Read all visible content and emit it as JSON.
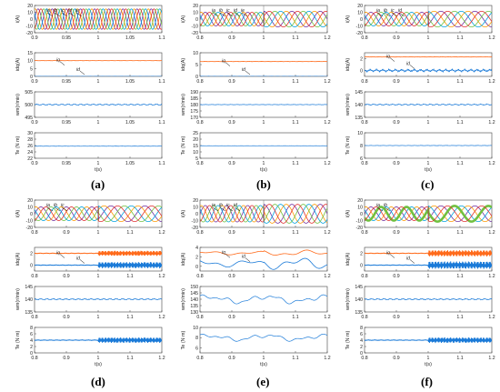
{
  "colors": {
    "phase_a": "#7030a0",
    "phase_b": "#ff9900",
    "phase_c": "#00a0e0",
    "phase_d": "#70c040",
    "phase_e": "#e03030",
    "id_line": "#ff6a1a",
    "iq_line": "#1a7ad8",
    "speed_line": "#1a7ad8",
    "torque_line": "#1a7ad8",
    "axis": "#444444"
  },
  "chart_data": [
    {
      "panel": "(a)",
      "type": "line",
      "xlabel": "t(s)",
      "xlim": [
        0.9,
        1.1
      ],
      "xticks": [
        "0.9",
        "0.95",
        "1",
        "1.05",
        "1.1"
      ],
      "subplots": [
        {
          "ylabel": "i(A)",
          "ylim": [
            -20,
            20
          ],
          "yticks": [
            "20",
            "10",
            "0",
            "-10",
            "-20"
          ],
          "kind": "phase_currents",
          "amp": 15,
          "cycles": 9,
          "phases": 5,
          "change_at": null,
          "annotations": [
            "ia",
            "ib",
            "ic",
            "id",
            "ie"
          ]
        },
        {
          "ylabel": "idq(A)",
          "ylim": [
            0,
            15
          ],
          "yticks": [
            "15",
            "10",
            "5",
            "0"
          ],
          "kind": "dq",
          "series": [
            {
              "name": "iq",
              "mean": 10,
              "ripple": 0.08
            },
            {
              "name": "id",
              "mean": 0,
              "ripple": 0.08
            }
          ]
        },
        {
          "ylabel": "wm(r/min)",
          "ylim": [
            495,
            505
          ],
          "yticks": [
            "505",
            "500",
            "495"
          ],
          "kind": "flat",
          "mean": 500,
          "ripple": 0.3
        },
        {
          "ylabel": "Te (N m)",
          "ylim": [
            22,
            30
          ],
          "yticks": [
            "30",
            "28",
            "26",
            "24",
            "22"
          ],
          "kind": "flat",
          "mean": 25.8,
          "ripple": 0.05
        }
      ]
    },
    {
      "panel": "(b)",
      "type": "line",
      "xlabel": "t(s)",
      "xlim": [
        0.8,
        1.2
      ],
      "xticks": [
        "0.8",
        "0.9",
        "1",
        "1.1",
        "1.2"
      ],
      "subplots": [
        {
          "ylabel": "i(A)",
          "ylim": [
            -20,
            20
          ],
          "yticks": [
            "20",
            "10",
            "0",
            "-10",
            "-20"
          ],
          "kind": "phase_currents",
          "amp": 10,
          "cycles": 6,
          "phases": 5,
          "change_at": 1.0,
          "annotations": [
            "ia",
            "ib",
            "ic",
            "id",
            "ie"
          ]
        },
        {
          "ylabel": "idq(A)",
          "ylim": [
            0,
            10
          ],
          "yticks": [
            "10",
            "5",
            "0"
          ],
          "kind": "dq",
          "series": [
            {
              "name": "iq",
              "mean": 6.3,
              "ripple": 0.08
            },
            {
              "name": "id",
              "mean": 0,
              "ripple": 0.08
            }
          ]
        },
        {
          "ylabel": "wm(r/min)",
          "ylim": [
            170,
            190
          ],
          "yticks": [
            "190",
            "185",
            "180",
            "175",
            "170"
          ],
          "kind": "flat",
          "mean": 180,
          "ripple": 0.2
        },
        {
          "ylabel": "Te (N m)",
          "ylim": [
            5,
            25
          ],
          "yticks": [
            "25",
            "20",
            "15",
            "10",
            "5"
          ],
          "kind": "flat",
          "mean": 14.8,
          "ripple": 0.05
        }
      ]
    },
    {
      "panel": "(c)",
      "type": "line",
      "xlabel": "t(s)",
      "xlim": [
        0.8,
        1.2
      ],
      "xticks": [
        "0.8",
        "0.9",
        "1",
        "1.1",
        "1.2"
      ],
      "subplots": [
        {
          "ylabel": "i(A)",
          "ylim": [
            -20,
            20
          ],
          "yticks": [
            "20",
            "10",
            "0",
            "-10",
            "-20"
          ],
          "kind": "phase_currents",
          "amp": 10,
          "cycles": 5,
          "phases": 5,
          "change_at": 1.0,
          "annotations": [
            "ia",
            "ib",
            "ic",
            "id"
          ]
        },
        {
          "ylabel": "idq(A)",
          "ylim": [
            -1,
            3
          ],
          "yticks": [
            "2",
            "0"
          ],
          "kind": "dq",
          "series": [
            {
              "name": "iq",
              "mean": 2.3,
              "ripple": 0.04
            },
            {
              "name": "id",
              "mean": 0.0,
              "ripple": 0.25
            }
          ]
        },
        {
          "ylabel": "wm(r/min)",
          "ylim": [
            135,
            145
          ],
          "yticks": [
            "145",
            "140",
            "135"
          ],
          "kind": "flat",
          "mean": 140,
          "ripple": 0.3
        },
        {
          "ylabel": "Te (N m)",
          "ylim": [
            6,
            10
          ],
          "yticks": [
            "10",
            "8",
            "6"
          ],
          "kind": "flat",
          "mean": 8,
          "ripple": 0.03
        }
      ]
    },
    {
      "panel": "(d)",
      "type": "line",
      "xlabel": "t(s)",
      "xlim": [
        0.8,
        1.2
      ],
      "xticks": [
        "0.8",
        "0.9",
        "1",
        "1.1",
        "1.2"
      ],
      "subplots": [
        {
          "ylabel": "i(A)",
          "ylim": [
            -20,
            20
          ],
          "yticks": [
            "20",
            "10",
            "0",
            "-10",
            "-20"
          ],
          "kind": "phase_currents",
          "amp": 10,
          "cycles": 5,
          "phases": 5,
          "change_at": 1.0,
          "annotations": [
            "ia",
            "ib",
            "ic"
          ]
        },
        {
          "ylabel": "idq(A)",
          "ylim": [
            -1,
            3
          ],
          "yticks": [
            "2",
            "0"
          ],
          "kind": "dq_band",
          "series": [
            {
              "name": "iq",
              "mean": 2.0,
              "ripple": 0.05,
              "band": 0.4
            },
            {
              "name": "id",
              "mean": 0.0,
              "ripple": 0.05,
              "band": 0.5
            }
          ]
        },
        {
          "ylabel": "wm(r/min)",
          "ylim": [
            135,
            145
          ],
          "yticks": [
            "145",
            "140",
            "135"
          ],
          "kind": "flat",
          "mean": 140,
          "ripple": 0.3
        },
        {
          "ylabel": "Te (N m)",
          "ylim": [
            0,
            8
          ],
          "yticks": [
            "8",
            "6",
            "4",
            "2",
            "0"
          ],
          "kind": "band_after",
          "mean": 4,
          "ripple": 0.1,
          "band": 0.8
        }
      ]
    },
    {
      "panel": "(e)",
      "type": "line",
      "xlabel": "t(s)",
      "xlim": [
        0.8,
        1.2
      ],
      "xticks": [
        "0.8",
        "0.9",
        "1",
        "1.1",
        "1.2"
      ],
      "subplots": [
        {
          "ylabel": "i(A)",
          "ylim": [
            -20,
            20
          ],
          "yticks": [
            "20",
            "10",
            "0",
            "-10",
            "-20"
          ],
          "kind": "phase_currents",
          "amp": 12,
          "cycles": 6,
          "phases": 5,
          "change_at": 1.0,
          "annotations": [
            "ia",
            "ib",
            "ic",
            "id"
          ]
        },
        {
          "ylabel": "idq(A)",
          "ylim": [
            -1,
            4
          ],
          "yticks": [
            "4",
            "2",
            "0"
          ],
          "kind": "dq_wobble",
          "series": [
            {
              "name": "iq",
              "mean": 2.8,
              "ripple": 0.4
            },
            {
              "name": "id",
              "mean": 0.6,
              "ripple": 0.8
            }
          ]
        },
        {
          "ylabel": "wm(r/min)",
          "ylim": [
            130,
            150
          ],
          "yticks": [
            "150",
            "145",
            "140",
            "135",
            "130"
          ],
          "kind": "wobble",
          "mean": 140,
          "ripple": 4
        },
        {
          "ylabel": "Te (N m)",
          "ylim": [
            5,
            10
          ],
          "yticks": [
            "10",
            "8",
            "6"
          ],
          "kind": "wobble",
          "mean": 8,
          "ripple": 0.8
        }
      ]
    },
    {
      "panel": "(f)",
      "type": "line",
      "xlabel": "t(s)",
      "xlim": [
        0.8,
        1.2
      ],
      "xticks": [
        "0.8",
        "0.9",
        "1",
        "1.1",
        "1.2"
      ],
      "subplots": [
        {
          "ylabel": "i(A)",
          "ylim": [
            -20,
            20
          ],
          "yticks": [
            "20",
            "10",
            "0",
            "-10",
            "-20"
          ],
          "kind": "phase_currents_thick",
          "amp": 10,
          "cycles": 5,
          "phases": 5,
          "change_at": 1.0,
          "annotations": [
            "ia",
            "ib"
          ]
        },
        {
          "ylabel": "idq(A)",
          "ylim": [
            -1,
            3
          ],
          "yticks": [
            "2",
            "0"
          ],
          "kind": "dq_band",
          "series": [
            {
              "name": "iq",
              "mean": 2.0,
              "ripple": 0.05,
              "band": 0.5
            },
            {
              "name": "id",
              "mean": 0.0,
              "ripple": 0.05,
              "band": 0.6
            }
          ]
        },
        {
          "ylabel": "wm(r/min)",
          "ylim": [
            135,
            145
          ],
          "yticks": [
            "145",
            "140",
            "135"
          ],
          "kind": "flat",
          "mean": 140,
          "ripple": 0.3
        },
        {
          "ylabel": "Te (N m)",
          "ylim": [
            0,
            8
          ],
          "yticks": [
            "8",
            "6",
            "4",
            "2",
            "0"
          ],
          "kind": "band_after",
          "mean": 4,
          "ripple": 0.1,
          "band": 0.8
        }
      ]
    }
  ]
}
